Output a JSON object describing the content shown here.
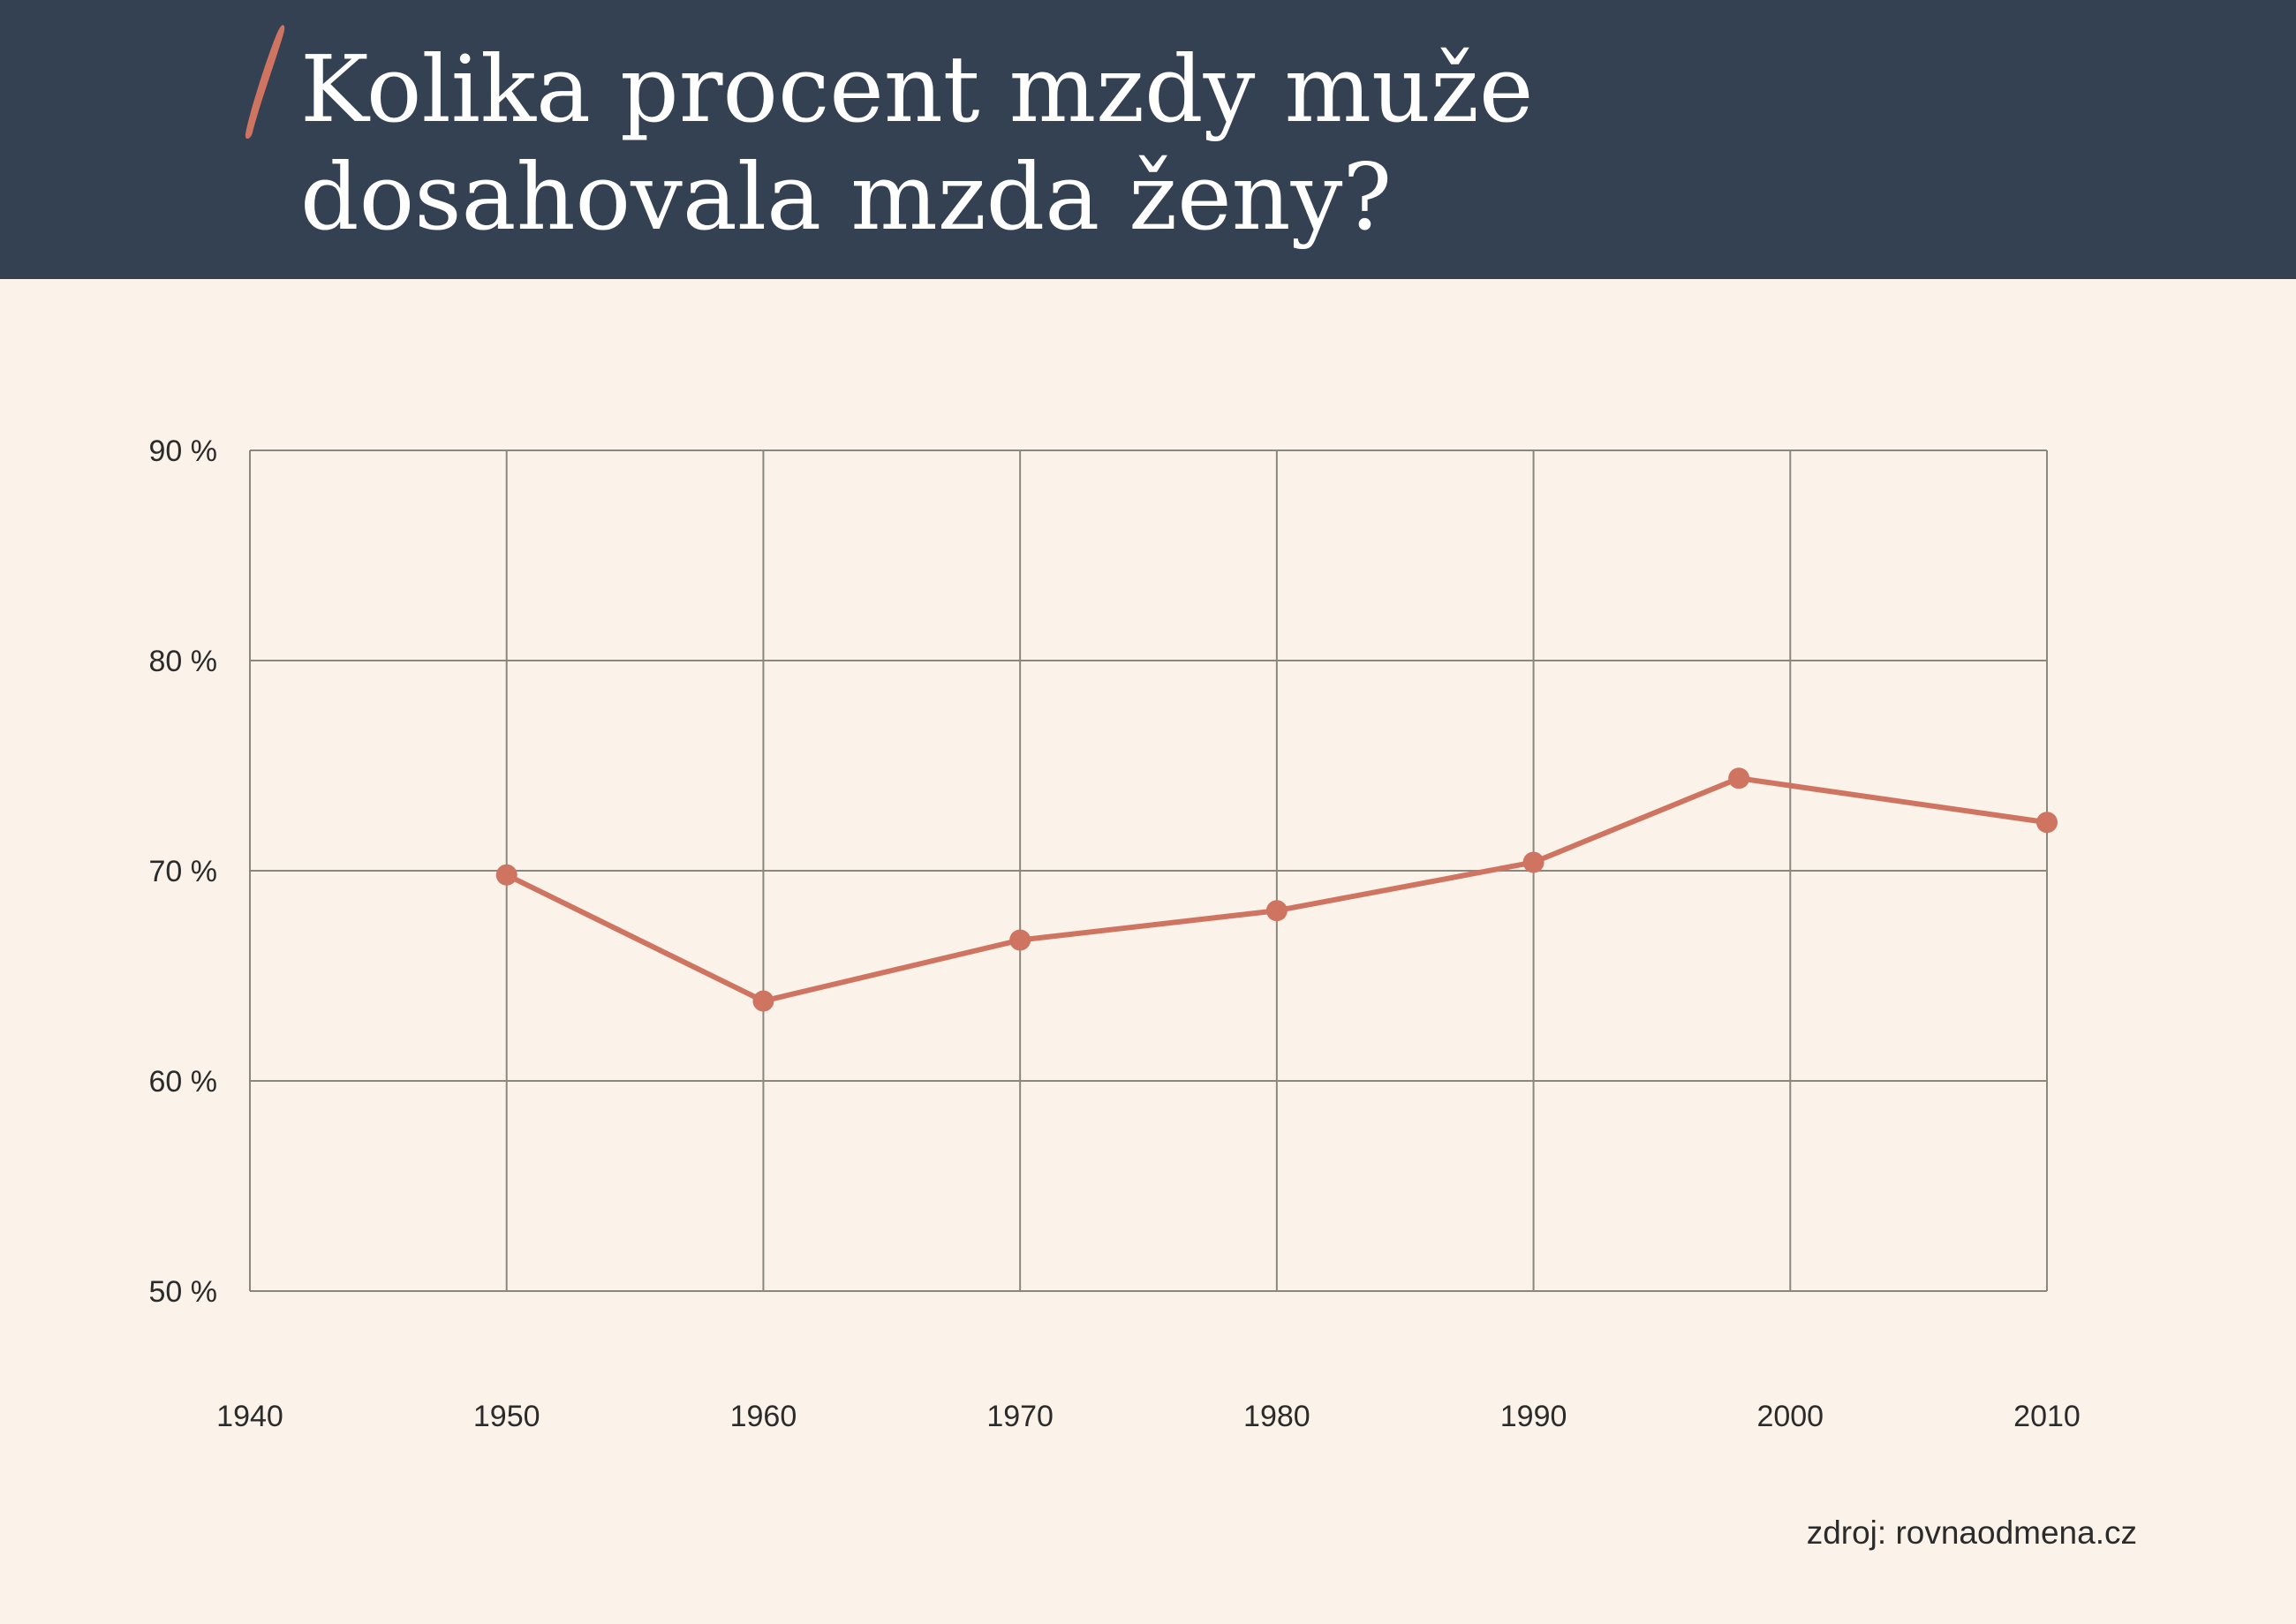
{
  "header": {
    "title_lines": [
      "Kolika procent mzdy muže",
      "dosahovala mzda ženy?"
    ],
    "background_color": "#344152",
    "accent_color": "#cf7461"
  },
  "source": "zdroj: rovnaodmena.cz",
  "chart_data": {
    "type": "line",
    "title": "Kolika procent mzdy muže dosahovala mzda ženy?",
    "xlabel": "",
    "ylabel": "",
    "xlim": [
      1940,
      2010
    ],
    "ylim": [
      50,
      90
    ],
    "x_ticks": [
      1940,
      1950,
      1960,
      1970,
      1980,
      1990,
      2000,
      2010
    ],
    "x_tick_labels": [
      "1940",
      "1950",
      "1960",
      "1970",
      "1980",
      "1990",
      "2000",
      "2010"
    ],
    "y_ticks": [
      50,
      60,
      70,
      80,
      90
    ],
    "y_tick_labels": [
      "50 %",
      "60 %",
      "70 %",
      "80 %",
      "90 %"
    ],
    "grid": true,
    "legend": "none",
    "series": [
      {
        "color": "#cf7461",
        "points": [
          {
            "x": 1950,
            "y": 69.8
          },
          {
            "x": 1960,
            "y": 63.8
          },
          {
            "x": 1970,
            "y": 66.7
          },
          {
            "x": 1980,
            "y": 68.1
          },
          {
            "x": 1990,
            "y": 70.4
          },
          {
            "x": 1998,
            "y": 74.4
          },
          {
            "x": 2010,
            "y": 72.3
          }
        ]
      }
    ]
  }
}
